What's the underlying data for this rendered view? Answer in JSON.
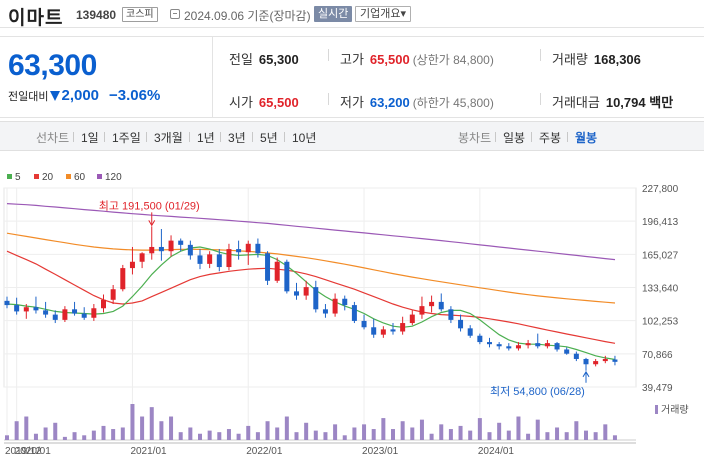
{
  "stock": {
    "name": "이마트",
    "code": "139480",
    "market": "코스피",
    "as_of": "2024.09.06  기준(장마감)",
    "realtime_label": "실시간",
    "overview_label": "기업개요",
    "overview_caret": "▾"
  },
  "price": {
    "current": "63,300",
    "change_label": "전일대비",
    "change": "2,000",
    "change_pct": "−3.06%"
  },
  "stats": {
    "prev_close": {
      "label": "전일",
      "value": "65,300"
    },
    "open": {
      "label": "시가",
      "value": "65,500"
    },
    "high": {
      "label": "고가",
      "value": "65,500",
      "sub": "(상한가 84,800)"
    },
    "low": {
      "label": "저가",
      "value": "63,200",
      "sub": "(하한가 45,800)"
    },
    "volume": {
      "label": "거래량",
      "value": "168,306"
    },
    "amount": {
      "label": "거래대금",
      "value": "10,794",
      "unit": "백만"
    }
  },
  "toolbar": {
    "line_label": "선차트",
    "line_periods": [
      "1일",
      "1주일",
      "3개월",
      "1년",
      "3년",
      "5년",
      "10년"
    ],
    "candle_label": "봉차트",
    "candle_periods": [
      "일봉",
      "주봉",
      "월봉"
    ],
    "active_candle": "월봉"
  },
  "colors": {
    "up": "#e0232a",
    "down": "#1e64c8",
    "ma5": "#4caf50",
    "ma20": "#e53935",
    "ma60": "#f28c28",
    "ma120": "#9b59b6"
  },
  "chart_data": {
    "type": "candlestick",
    "interval": "monthly",
    "legend": [
      {
        "name": "5",
        "color": "#4caf50"
      },
      {
        "name": "20",
        "color": "#e53935"
      },
      {
        "name": "60",
        "color": "#f28c28"
      },
      {
        "name": "120",
        "color": "#9b59b6"
      }
    ],
    "y_ticks": [
      "227,800",
      "196,413",
      "165,027",
      "133,640",
      "102,253",
      "70,866",
      "39,479"
    ],
    "y_tick_values": [
      227800,
      196413,
      165027,
      133640,
      102253,
      70866,
      39479
    ],
    "ylim": [
      39479,
      227800
    ],
    "x_ticks": [
      {
        "label": "2019/12",
        "index": 0
      },
      {
        "label": "2020/01",
        "index": 1
      },
      {
        "label": "2021/01",
        "index": 13
      },
      {
        "label": "2022/01",
        "index": 25
      },
      {
        "label": "2023/01",
        "index": 37
      },
      {
        "label": "2024/01",
        "index": 49
      }
    ],
    "candles": [
      [
        121000,
        125000,
        114000,
        117000
      ],
      [
        117000,
        124000,
        108000,
        111000
      ],
      [
        111000,
        118000,
        104000,
        115000
      ],
      [
        115000,
        125000,
        109000,
        112000
      ],
      [
        112000,
        120000,
        105000,
        108000
      ],
      [
        108000,
        112000,
        100000,
        103000
      ],
      [
        103000,
        116000,
        101000,
        113000
      ],
      [
        113000,
        120000,
        107000,
        109000
      ],
      [
        109000,
        115000,
        103000,
        105000
      ],
      [
        105000,
        118000,
        102000,
        114000
      ],
      [
        114000,
        127000,
        110000,
        122000
      ],
      [
        122000,
        136000,
        118000,
        132000
      ],
      [
        132000,
        155000,
        130000,
        152000
      ],
      [
        152000,
        172000,
        146000,
        158000
      ],
      [
        158000,
        167000,
        152000,
        166000
      ],
      [
        166000,
        191500,
        160000,
        172000
      ],
      [
        172000,
        189000,
        159000,
        168000
      ],
      [
        168000,
        183000,
        163000,
        178000
      ],
      [
        178000,
        180000,
        168000,
        174000
      ],
      [
        174000,
        178000,
        160000,
        164000
      ],
      [
        164000,
        170000,
        151000,
        156000
      ],
      [
        156000,
        168000,
        152000,
        165000
      ],
      [
        165000,
        170000,
        149000,
        153000
      ],
      [
        153000,
        175000,
        150000,
        170000
      ],
      [
        170000,
        178000,
        160000,
        167000
      ],
      [
        167000,
        178000,
        155000,
        175000
      ],
      [
        175000,
        180000,
        162000,
        166000
      ],
      [
        166000,
        168000,
        136000,
        140000
      ],
      [
        140000,
        162000,
        138000,
        158000
      ],
      [
        158000,
        160000,
        128000,
        130000
      ],
      [
        130000,
        138000,
        122000,
        126000
      ],
      [
        126000,
        140000,
        122000,
        134000
      ],
      [
        134000,
        140000,
        110000,
        113000
      ],
      [
        113000,
        118000,
        105000,
        109000
      ],
      [
        109000,
        128000,
        106000,
        123000
      ],
      [
        123000,
        126000,
        112000,
        117000
      ],
      [
        117000,
        120000,
        100000,
        102000
      ],
      [
        102000,
        108000,
        94000,
        96000
      ],
      [
        96000,
        104000,
        86000,
        89000
      ],
      [
        89000,
        97000,
        86000,
        94000
      ],
      [
        94000,
        100000,
        89000,
        92000
      ],
      [
        92000,
        106000,
        89000,
        100000
      ],
      [
        100000,
        112000,
        98000,
        108000
      ],
      [
        108000,
        125000,
        104000,
        116000
      ],
      [
        116000,
        126000,
        110000,
        120000
      ],
      [
        120000,
        128000,
        111000,
        113000
      ],
      [
        113000,
        116000,
        100000,
        103000
      ],
      [
        103000,
        108000,
        92000,
        95000
      ],
      [
        95000,
        98000,
        86000,
        88000
      ],
      [
        88000,
        90000,
        80000,
        82000
      ],
      [
        82000,
        86000,
        77000,
        80000
      ],
      [
        80000,
        82000,
        75000,
        78000
      ],
      [
        78000,
        81000,
        74000,
        76000
      ],
      [
        76000,
        82000,
        74000,
        79000
      ],
      [
        79000,
        84000,
        76000,
        81000
      ],
      [
        81000,
        90000,
        76000,
        78000
      ],
      [
        78000,
        84000,
        76000,
        81000
      ],
      [
        81000,
        82000,
        73000,
        75000
      ],
      [
        75000,
        77000,
        70000,
        71000
      ],
      [
        71000,
        73000,
        64000,
        66000
      ],
      [
        66000,
        67000,
        54800,
        61000
      ],
      [
        61000,
        66000,
        59000,
        64000
      ],
      [
        64000,
        69000,
        62000,
        66000
      ],
      [
        65500,
        69000,
        60000,
        63300
      ]
    ],
    "volumes": [
      3,
      12,
      15,
      4,
      8,
      11,
      2,
      5,
      3,
      6,
      9,
      7,
      8,
      23,
      15,
      21,
      12,
      15,
      5,
      8,
      4,
      6,
      5,
      7,
      4,
      9,
      5,
      12,
      8,
      15,
      5,
      11,
      6,
      5,
      10,
      3,
      8,
      10,
      7,
      14,
      7,
      12,
      8,
      13,
      4,
      10,
      7,
      9,
      6,
      14,
      5,
      11,
      6,
      15,
      4,
      13,
      5,
      8,
      5,
      12,
      6,
      5,
      10,
      3
    ],
    "ma120": [
      213000,
      212500,
      212000,
      211300,
      210500,
      209800,
      209000,
      208200,
      207400,
      206600,
      205800,
      205000,
      204200,
      203500,
      202800,
      202100,
      201500,
      200900,
      200300,
      199700,
      199100,
      198500,
      197800,
      197100,
      196400,
      195700,
      195000,
      194300,
      193400,
      192500,
      191600,
      190700,
      189800,
      188900,
      188000,
      187100,
      186200,
      185300,
      184400,
      183500,
      182600,
      181700,
      180800,
      179900,
      179000,
      178000,
      177000,
      176000,
      175000,
      174000,
      173000,
      172000,
      171000,
      170000,
      169000,
      168000,
      167000,
      166000,
      165000,
      164000,
      163000,
      162000,
      161000,
      160000
    ],
    "ma60": [
      185000,
      183500,
      182000,
      180500,
      179000,
      177500,
      176000,
      174500,
      173200,
      172000,
      171000,
      170200,
      169600,
      169200,
      169000,
      169000,
      169200,
      169500,
      169700,
      169800,
      169700,
      169500,
      169200,
      168800,
      168300,
      167800,
      167100,
      166300,
      165400,
      164300,
      163100,
      161800,
      160400,
      158900,
      157300,
      155700,
      154000,
      152200,
      150400,
      148600,
      146800,
      145100,
      143500,
      142000,
      140500,
      139000,
      137600,
      136200,
      134800,
      133400,
      132000,
      130600,
      129300,
      128000,
      126800,
      125700,
      124700,
      123800,
      122900,
      122100,
      121300,
      120500,
      119700,
      119000
    ],
    "ma20": [
      168000,
      164000,
      160000,
      156000,
      151000,
      146000,
      141000,
      136000,
      131000,
      126000,
      122000,
      119000,
      118000,
      119000,
      121000,
      125000,
      129000,
      133000,
      137000,
      141000,
      144000,
      146000,
      147500,
      149000,
      150000,
      151000,
      151500,
      151800,
      151000,
      150000,
      148500,
      146500,
      144000,
      141000,
      138000,
      135000,
      132000,
      128500,
      125000,
      121500,
      118000,
      115000,
      112500,
      110500,
      109000,
      108000,
      107500,
      107000,
      106300,
      105300,
      104000,
      102500,
      101000,
      99300,
      97300,
      95300,
      93300,
      91500,
      89600,
      87800,
      86000,
      84200,
      82400,
      80800
    ],
    "ma5": [
      118000,
      117500,
      116000,
      115000,
      113000,
      111000,
      110000,
      109500,
      109000,
      108500,
      109000,
      111000,
      116000,
      125000,
      135000,
      146000,
      155000,
      163000,
      168000,
      171000,
      172000,
      170000,
      167000,
      165000,
      164000,
      164500,
      165000,
      164000,
      160000,
      154000,
      147000,
      139000,
      131000,
      125000,
      120000,
      116000,
      113000,
      109000,
      104000,
      100000,
      97000,
      96000,
      97000,
      101000,
      106000,
      110000,
      112000,
      112000,
      109000,
      103000,
      96000,
      89000,
      84000,
      81000,
      80000,
      80000,
      79000,
      78500,
      77500,
      75000,
      72000,
      69000,
      67000,
      65500
    ],
    "annotations": [
      {
        "text": "최고 191,500 (01/29)",
        "value": 191500,
        "index": 15,
        "color": "#e0232a",
        "position": "above"
      },
      {
        "text": "최저 54,800 (06/28)",
        "value": 54800,
        "index": 60,
        "color": "#1e64c8",
        "position": "below"
      }
    ],
    "volume_label": "거래량"
  }
}
